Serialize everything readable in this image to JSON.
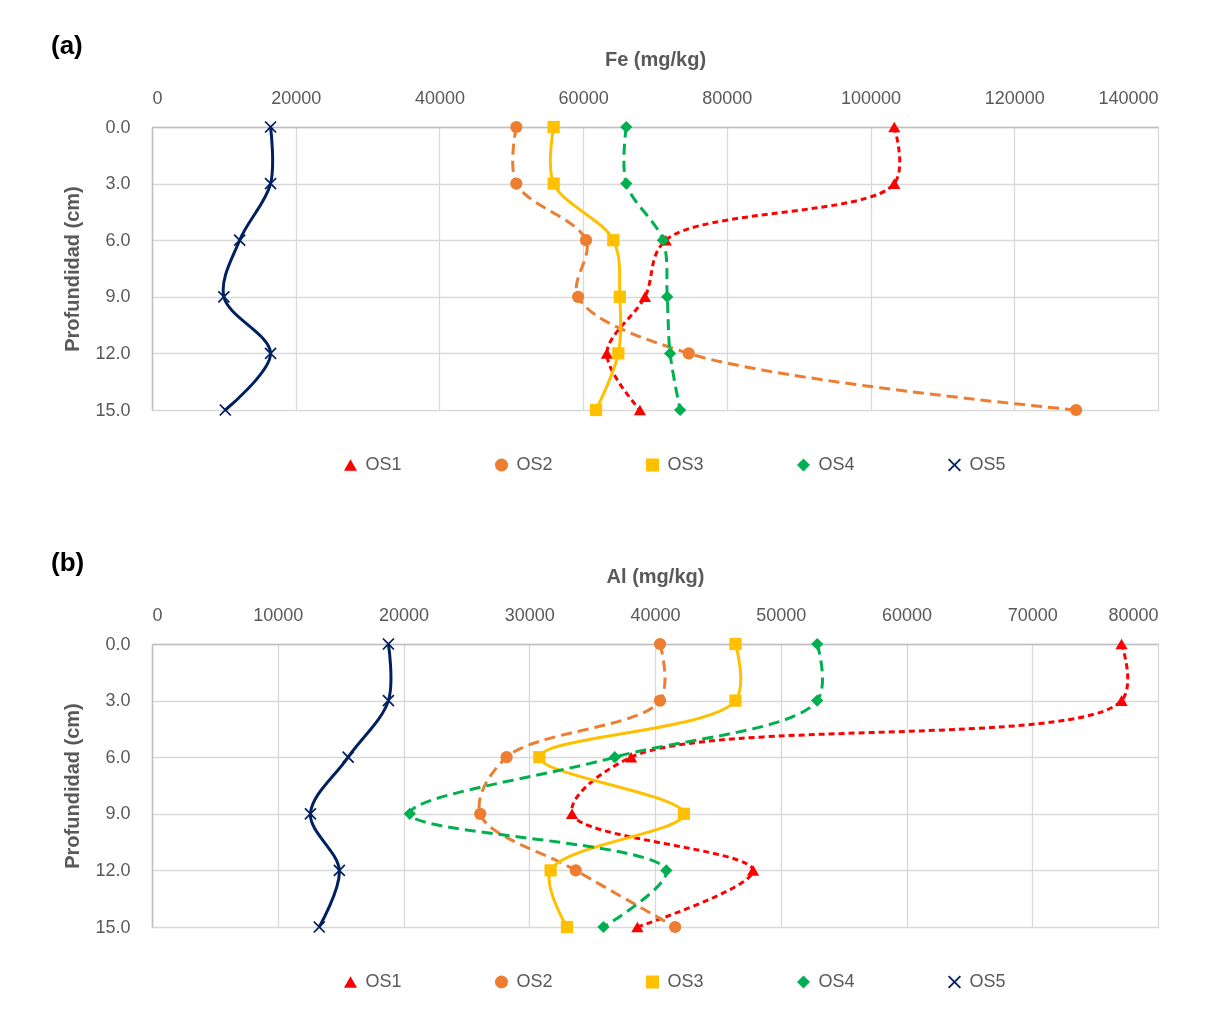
{
  "chart_data": [
    {
      "type": "line",
      "title": "(a)",
      "xlabel": "Fe (mg/kg)",
      "ylabel": "Profundidad (cm)",
      "xlim": [
        0,
        140000
      ],
      "xticks": [
        0,
        20000,
        40000,
        60000,
        80000,
        100000,
        120000,
        140000
      ],
      "ylim": [
        15,
        0
      ],
      "yticks": [
        {
          "value": 0,
          "label": "0.0"
        },
        {
          "value": 3,
          "label": "3.0"
        },
        {
          "value": 6,
          "label": "6.0"
        },
        {
          "value": 9,
          "label": "9.0"
        },
        {
          "value": 12,
          "label": "12.0"
        },
        {
          "value": 15,
          "label": "15.0"
        }
      ],
      "grid": true,
      "legend": "bottom",
      "series": [
        {
          "name": "OS1",
          "color": "#ff0000",
          "marker": "triangle",
          "line_style": "dotted",
          "x": [
            103300,
            103300,
            71500,
            68600,
            63300,
            67900
          ],
          "values": [
            0,
            3,
            6,
            9,
            12,
            15
          ]
        },
        {
          "name": "OS2",
          "color": "#ed7d31",
          "marker": "circle",
          "line_style": "dashed",
          "x": [
            50700,
            50700,
            60400,
            59300,
            74700,
            128600
          ],
          "values": [
            0,
            3,
            6,
            9,
            12,
            15
          ]
        },
        {
          "name": "OS3",
          "color": "#ffc000",
          "marker": "square",
          "line_style": "solid",
          "x": [
            55900,
            55900,
            64200,
            65100,
            64900,
            61800
          ],
          "values": [
            0,
            3,
            6,
            9,
            12,
            15
          ]
        },
        {
          "name": "OS4",
          "color": "#00b050",
          "marker": "diamond",
          "line_style": "dashed",
          "x": [
            66000,
            66000,
            71100,
            71700,
            72100,
            73500
          ],
          "values": [
            0,
            3,
            6,
            9,
            12,
            15
          ]
        },
        {
          "name": "OS5",
          "color": "#002060",
          "marker": "cross",
          "line_style": "solid",
          "x": [
            16500,
            16500,
            12200,
            10000,
            16500,
            10200
          ],
          "values": [
            0,
            3,
            6,
            9,
            12,
            15
          ]
        }
      ]
    },
    {
      "type": "line",
      "title": "(b)",
      "xlabel": "Al (mg/kg)",
      "ylabel": "Profundidad (cm)",
      "xlim": [
        0,
        80000
      ],
      "xticks": [
        0,
        10000,
        20000,
        30000,
        40000,
        50000,
        60000,
        70000,
        80000
      ],
      "ylim": [
        15,
        0
      ],
      "yticks": [
        {
          "value": 0,
          "label": "0.0"
        },
        {
          "value": 3,
          "label": "3.0"
        },
        {
          "value": 6,
          "label": "6.0"
        },
        {
          "value": 9,
          "label": "9.0"
        },
        {
          "value": 12,
          "label": "12.0"
        },
        {
          "value": 15,
          "label": "15.0"
        }
      ],
      "grid": true,
      "legend": "bottom",
      "series": [
        {
          "name": "OS1",
          "color": "#ff0000",
          "marker": "triangle",
          "line_style": "dotted",
          "x": [
            77100,
            77100,
            38100,
            33400,
            47800,
            38600
          ],
          "values": [
            0,
            3,
            6,
            9,
            12,
            15
          ]
        },
        {
          "name": "OS2",
          "color": "#ed7d31",
          "marker": "circle",
          "line_style": "dashed",
          "x": [
            40400,
            40400,
            28200,
            26100,
            33700,
            41600
          ],
          "values": [
            0,
            3,
            6,
            9,
            12,
            15
          ]
        },
        {
          "name": "OS3",
          "color": "#ffc000",
          "marker": "square",
          "line_style": "solid",
          "x": [
            46400,
            46400,
            30800,
            42300,
            31700,
            33000
          ],
          "values": [
            0,
            3,
            6,
            9,
            12,
            15
          ]
        },
        {
          "name": "OS4",
          "color": "#00b050",
          "marker": "diamond",
          "line_style": "dashed",
          "x": [
            52900,
            52900,
            36800,
            20500,
            40900,
            35900
          ],
          "values": [
            0,
            3,
            6,
            9,
            12,
            15
          ]
        },
        {
          "name": "OS5",
          "color": "#002060",
          "marker": "cross",
          "line_style": "solid",
          "x": [
            18800,
            18800,
            15600,
            12600,
            14900,
            13300
          ],
          "values": [
            0,
            3,
            6,
            9,
            12,
            15
          ]
        }
      ]
    }
  ]
}
